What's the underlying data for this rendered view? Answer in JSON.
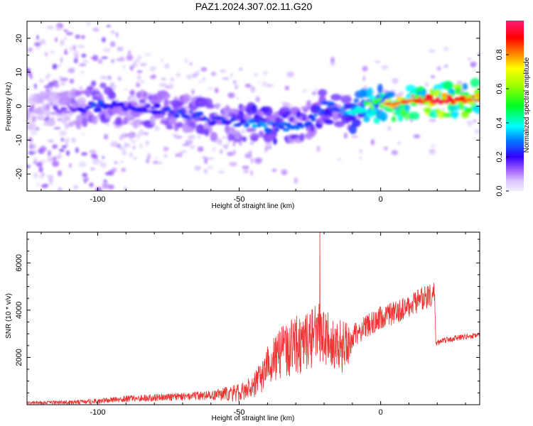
{
  "title": "PAZ1.2024.307.02.11.G20",
  "chart_data": [
    {
      "type": "heatmap",
      "xlabel": "Height of straight line (km)",
      "ylabel": "Frequency (Hz)",
      "xlim": [
        -125,
        35
      ],
      "ylim": [
        -25,
        25
      ],
      "xticks": [
        -100,
        -50,
        0
      ],
      "yticks": [
        -20,
        -10,
        0,
        10,
        20
      ],
      "colorbar": {
        "label": "Normalized spectral amplitude",
        "range": [
          0,
          1
        ],
        "ticks": [
          0.0,
          0.2,
          0.4,
          0.6,
          0.8
        ]
      },
      "ridge": {
        "height_km": [
          -125,
          -110,
          -100,
          -90,
          -80,
          -70,
          -60,
          -50,
          -45,
          -40,
          -35,
          -30,
          -25,
          -20,
          -15,
          -10,
          -5,
          0,
          5,
          10,
          20,
          35
        ],
        "frequency_hz": [
          -2,
          -1,
          0,
          0,
          -1,
          -2,
          -4,
          -5,
          -5,
          -6,
          -6,
          -6,
          -4,
          0,
          -1,
          -2,
          0,
          1,
          1,
          2,
          2,
          2
        ],
        "amplitude": [
          0.1,
          0.15,
          0.25,
          0.2,
          0.22,
          0.24,
          0.22,
          0.24,
          0.3,
          0.28,
          0.26,
          0.26,
          0.22,
          0.3,
          0.25,
          0.35,
          0.5,
          0.6,
          0.7,
          0.9,
          0.95,
          0.8
        ]
      }
    },
    {
      "type": "line",
      "xlabel": "Height of straight line (km)",
      "ylabel": "SNR (10 * v/v)",
      "xlim": [
        -125,
        35
      ],
      "ylim": [
        0,
        7300
      ],
      "xticks": [
        -100,
        -50,
        0
      ],
      "yticks": [
        2000,
        4000,
        6000
      ],
      "color": "#ee3333",
      "envelope": {
        "x": [
          -125,
          -110,
          -100,
          -90,
          -80,
          -70,
          -60,
          -55,
          -50,
          -45,
          -42,
          -40,
          -35,
          -30,
          -25,
          -22,
          -20,
          -15,
          -12,
          -10,
          -5,
          0,
          5,
          10,
          15,
          19,
          19.5,
          22,
          28,
          35
        ],
        "y": [
          80,
          100,
          150,
          250,
          300,
          350,
          400,
          450,
          500,
          800,
          1200,
          1700,
          2200,
          2500,
          2800,
          3200,
          3000,
          2500,
          2400,
          2900,
          3300,
          3700,
          3900,
          4200,
          4500,
          4700,
          2600,
          2700,
          2850,
          2950
        ]
      },
      "noise_amplitude": {
        "x": [
          -125,
          -60,
          -45,
          -40,
          -35,
          -22,
          -20,
          -12,
          -10,
          0,
          19,
          19.5,
          35
        ],
        "amp": [
          60,
          200,
          500,
          800,
          1200,
          1400,
          1300,
          1100,
          500,
          500,
          500,
          120,
          120
        ]
      },
      "peak": {
        "x": -21.5,
        "y": 7300
      }
    }
  ]
}
